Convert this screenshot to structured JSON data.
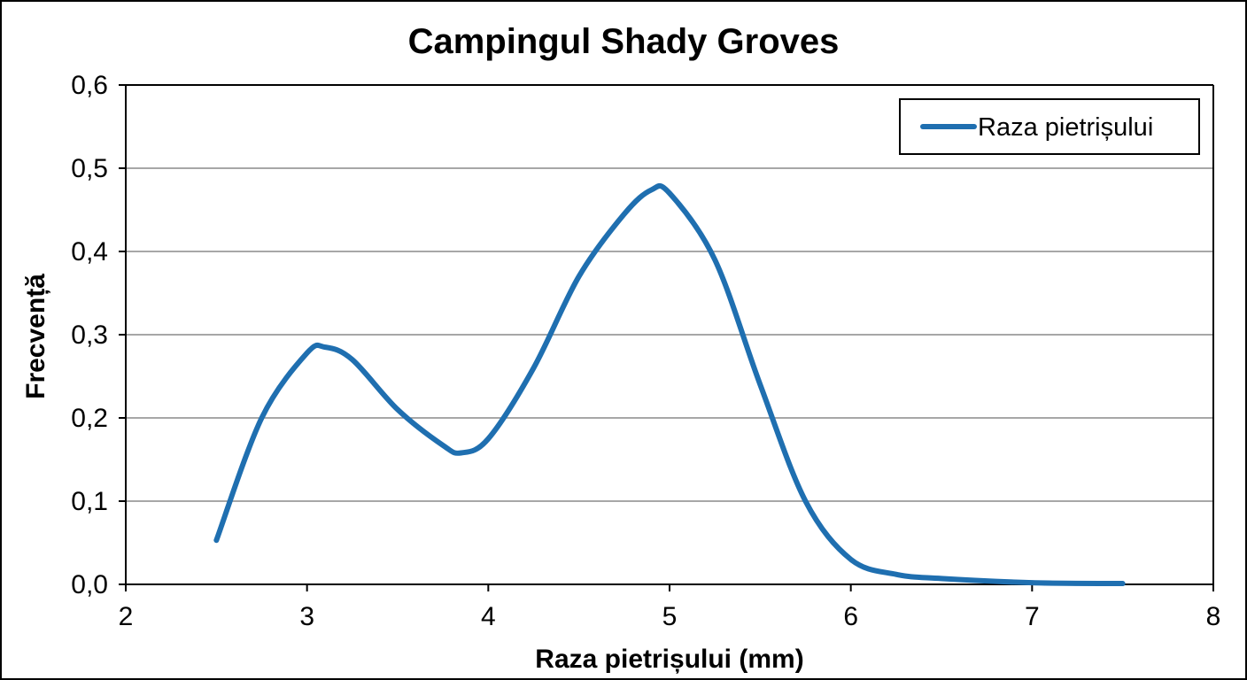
{
  "chart_data": {
    "type": "line",
    "title": "Campingul Shady Groves",
    "xlabel": "Raza pietrișului (mm)",
    "ylabel": "Frecvență",
    "xlim": [
      2,
      8
    ],
    "ylim": [
      0,
      0.6
    ],
    "x_ticks": [
      2,
      3,
      4,
      5,
      6,
      7,
      8
    ],
    "x_tick_labels": [
      "2",
      "3",
      "4",
      "5",
      "6",
      "7",
      "8"
    ],
    "y_ticks": [
      0,
      0.1,
      0.2,
      0.3,
      0.4,
      0.5,
      0.6
    ],
    "y_tick_labels": [
      "0,0",
      "0,1",
      "0,2",
      "0,3",
      "0,4",
      "0,5",
      "0,6"
    ],
    "grid": "horizontal",
    "legend_position": "top-right",
    "series": [
      {
        "name": "Raza pietrișului",
        "color": "#1F6FB0",
        "x": [
          2.5,
          2.75,
          3.0,
          3.1,
          3.25,
          3.5,
          3.75,
          3.85,
          4.0,
          4.25,
          4.5,
          4.75,
          4.9,
          5.0,
          5.25,
          5.5,
          5.75,
          6.0,
          6.25,
          6.5,
          7.0,
          7.5
        ],
        "y": [
          0.053,
          0.2,
          0.278,
          0.285,
          0.27,
          0.21,
          0.167,
          0.158,
          0.175,
          0.26,
          0.37,
          0.445,
          0.474,
          0.47,
          0.39,
          0.24,
          0.1,
          0.03,
          0.012,
          0.007,
          0.002,
          0.001
        ]
      }
    ]
  }
}
